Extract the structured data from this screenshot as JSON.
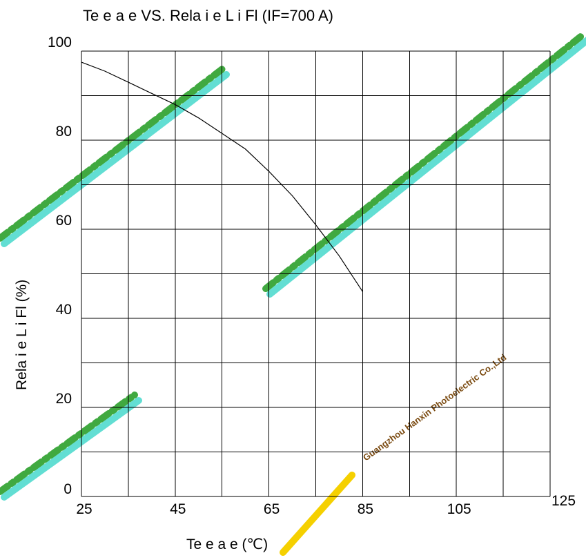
{
  "chart_data": {
    "type": "line",
    "title": "Te  e a  e VS. Rela i e L  i    Fl    (IF=700  A)",
    "xlabel": "Te  e a  e (℃)",
    "ylabel": "Rela i e L  i    Fl    (%)",
    "x_ticks": [
      "25",
      "45",
      "65",
      "85",
      "105",
      "125"
    ],
    "y_ticks": [
      "0",
      "20",
      "40",
      "60",
      "80",
      "100"
    ],
    "xlim": [
      25,
      125
    ],
    "ylim": [
      0,
      100
    ],
    "grid": true,
    "series": [
      {
        "x": [
          25,
          30,
          35,
          40,
          45,
          50,
          55,
          60,
          65,
          70,
          75,
          80,
          85
        ],
        "y": [
          97.5,
          95.5,
          93,
          90.5,
          88,
          85,
          81.5,
          78,
          73,
          67.5,
          61,
          54,
          46
        ]
      }
    ]
  },
  "watermarks": {
    "company_text": "Guangzhou Hanxin Photoelectric Co.,Ltd"
  },
  "colors": {
    "watermark_green": "#1f9a1f",
    "watermark_cyan": "#20d0c0",
    "watermark_yellow": "#f5d000",
    "watermark_brown": "#7a4a10"
  }
}
